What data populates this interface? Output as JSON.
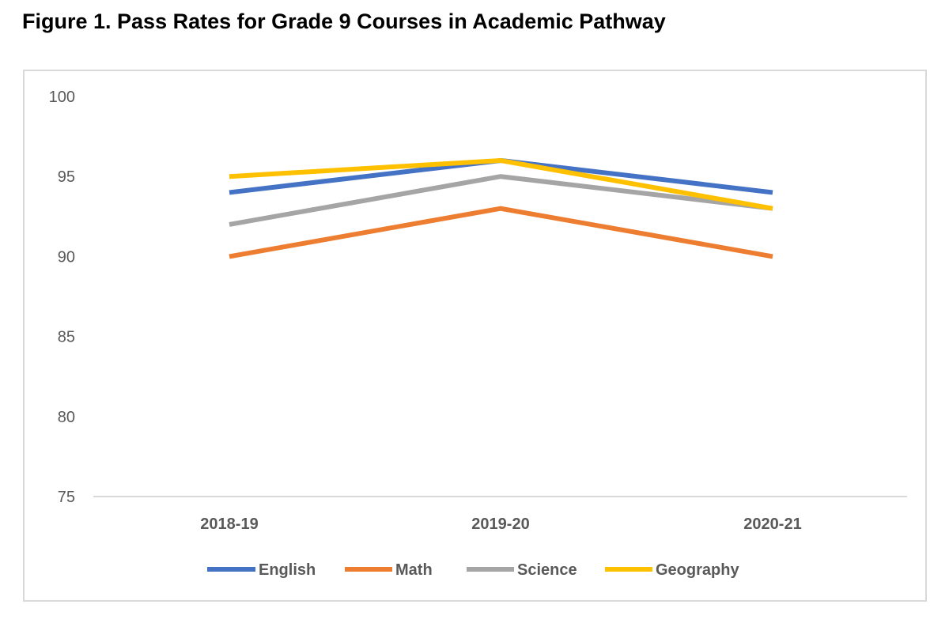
{
  "figure": {
    "title": "Figure 1. Pass Rates for Grade 9 Courses in Academic Pathway"
  },
  "chart_data": {
    "type": "line",
    "title": "",
    "xlabel": "",
    "ylabel": "",
    "categories": [
      "2018-19",
      "2019-20",
      "2020-21"
    ],
    "ylim": [
      75,
      100
    ],
    "yticks": [
      75,
      80,
      85,
      90,
      95,
      100
    ],
    "grid": false,
    "legend_position": "bottom",
    "series": [
      {
        "name": "English",
        "values": [
          94,
          96,
          94
        ],
        "color": "#4472C4"
      },
      {
        "name": "Math",
        "values": [
          90,
          93,
          90
        ],
        "color": "#ED7D31"
      },
      {
        "name": "Science",
        "values": [
          92,
          95,
          93
        ],
        "color": "#A5A5A5"
      },
      {
        "name": "Geography",
        "values": [
          95,
          96,
          93
        ],
        "color": "#FFC000"
      }
    ]
  }
}
